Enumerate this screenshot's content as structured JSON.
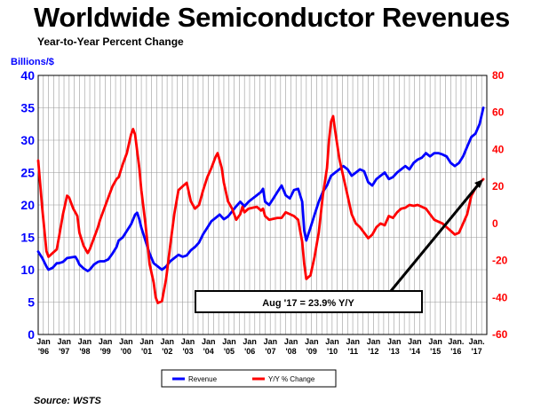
{
  "title": "Worldwide Semiconductor Revenues",
  "subtitle": "Year-to-Year Percent Change",
  "source": "Source: WSTS",
  "chart_data": {
    "type": "line",
    "title": "Worldwide Semiconductor Revenues",
    "subtitle": "Year-to-Year Percent Change",
    "ylabel_left": "Billions/$",
    "ylim_left": [
      0,
      40
    ],
    "yticks_left": [
      "0",
      "5",
      "10",
      "15",
      "20",
      "25",
      "30",
      "35",
      "40"
    ],
    "ylim_right": [
      -60,
      80
    ],
    "yticks_right": [
      "-60",
      "-40",
      "-20",
      "0",
      "20",
      "40",
      "60",
      "80"
    ],
    "x_tick_labels": [
      {
        "top": "Jan",
        "bottom": "'96"
      },
      {
        "top": "Jan",
        "bottom": "'97"
      },
      {
        "top": "Jan",
        "bottom": "'98"
      },
      {
        "top": "Jan",
        "bottom": "'99"
      },
      {
        "top": "Jan",
        "bottom": "'00"
      },
      {
        "top": "Jan",
        "bottom": "'01"
      },
      {
        "top": "Jan",
        "bottom": "'02"
      },
      {
        "top": "Jan",
        "bottom": "'03"
      },
      {
        "top": "Jan",
        "bottom": "'04"
      },
      {
        "top": "Jan",
        "bottom": "'05"
      },
      {
        "top": "Jan",
        "bottom": "'06"
      },
      {
        "top": "Jan",
        "bottom": "'07"
      },
      {
        "top": "Jan",
        "bottom": "'08"
      },
      {
        "top": "Jan",
        "bottom": "'09"
      },
      {
        "top": "Jan",
        "bottom": "'10"
      },
      {
        "top": "Jan",
        "bottom": "'11"
      },
      {
        "top": "Jan",
        "bottom": "'12"
      },
      {
        "top": "Jan",
        "bottom": "'13"
      },
      {
        "top": "Jan",
        "bottom": "'14"
      },
      {
        "top": "Jan",
        "bottom": "'15"
      },
      {
        "top": "Jan.",
        "bottom": "'16"
      },
      {
        "top": "Jan.",
        "bottom": "'17"
      }
    ],
    "grid": true,
    "legend_position": "bottom-center",
    "annotation": {
      "text": "Aug '17 = 23.9% Y/Y",
      "x": 2017.58,
      "value": 23.9
    },
    "series": [
      {
        "name": "Revenue",
        "axis": "left",
        "color": "#0000ff",
        "points": [
          [
            1996.0,
            12.8
          ],
          [
            1996.2,
            11.8
          ],
          [
            1996.4,
            10.5
          ],
          [
            1996.5,
            10.0
          ],
          [
            1996.7,
            10.3
          ],
          [
            1996.9,
            11.0
          ],
          [
            1997.0,
            11.0
          ],
          [
            1997.2,
            11.2
          ],
          [
            1997.4,
            11.8
          ],
          [
            1997.6,
            11.9
          ],
          [
            1997.8,
            12.0
          ],
          [
            1997.9,
            11.5
          ],
          [
            1998.0,
            10.8
          ],
          [
            1998.2,
            10.2
          ],
          [
            1998.4,
            9.8
          ],
          [
            1998.5,
            10.0
          ],
          [
            1998.7,
            10.8
          ],
          [
            1998.9,
            11.2
          ],
          [
            1999.0,
            11.3
          ],
          [
            1999.2,
            11.3
          ],
          [
            1999.4,
            11.6
          ],
          [
            1999.6,
            12.5
          ],
          [
            1999.8,
            13.5
          ],
          [
            1999.9,
            14.5
          ],
          [
            2000.1,
            15.0
          ],
          [
            2000.3,
            16.0
          ],
          [
            2000.5,
            17.0
          ],
          [
            2000.7,
            18.5
          ],
          [
            2000.8,
            18.8
          ],
          [
            2000.9,
            17.8
          ],
          [
            2001.0,
            16.5
          ],
          [
            2001.2,
            14.5
          ],
          [
            2001.4,
            12.5
          ],
          [
            2001.6,
            11.0
          ],
          [
            2001.8,
            10.5
          ],
          [
            2002.0,
            10.0
          ],
          [
            2002.2,
            10.5
          ],
          [
            2002.4,
            11.3
          ],
          [
            2002.6,
            11.8
          ],
          [
            2002.8,
            12.3
          ],
          [
            2003.0,
            12.0
          ],
          [
            2003.2,
            12.2
          ],
          [
            2003.4,
            13.0
          ],
          [
            2003.6,
            13.5
          ],
          [
            2003.8,
            14.2
          ],
          [
            2004.0,
            15.5
          ],
          [
            2004.2,
            16.5
          ],
          [
            2004.4,
            17.5
          ],
          [
            2004.6,
            18.0
          ],
          [
            2004.8,
            18.5
          ],
          [
            2005.0,
            17.8
          ],
          [
            2005.2,
            18.2
          ],
          [
            2005.4,
            19.0
          ],
          [
            2005.6,
            19.8
          ],
          [
            2005.8,
            20.5
          ],
          [
            2006.0,
            19.8
          ],
          [
            2006.2,
            20.5
          ],
          [
            2006.4,
            21.0
          ],
          [
            2006.6,
            21.5
          ],
          [
            2006.8,
            22.0
          ],
          [
            2006.9,
            22.5
          ],
          [
            2007.0,
            20.5
          ],
          [
            2007.2,
            20.0
          ],
          [
            2007.4,
            21.0
          ],
          [
            2007.6,
            22.0
          ],
          [
            2007.8,
            23.0
          ],
          [
            2008.0,
            21.5
          ],
          [
            2008.2,
            21.0
          ],
          [
            2008.4,
            22.3
          ],
          [
            2008.6,
            22.5
          ],
          [
            2008.8,
            20.5
          ],
          [
            2008.9,
            16.0
          ],
          [
            2009.0,
            14.5
          ],
          [
            2009.2,
            16.5
          ],
          [
            2009.4,
            18.5
          ],
          [
            2009.6,
            20.5
          ],
          [
            2009.8,
            22.0
          ],
          [
            2010.0,
            23.0
          ],
          [
            2010.2,
            24.5
          ],
          [
            2010.4,
            25.0
          ],
          [
            2010.6,
            25.5
          ],
          [
            2010.8,
            26.0
          ],
          [
            2011.0,
            25.5
          ],
          [
            2011.2,
            24.5
          ],
          [
            2011.4,
            25.0
          ],
          [
            2011.6,
            25.5
          ],
          [
            2011.8,
            25.2
          ],
          [
            2012.0,
            23.5
          ],
          [
            2012.2,
            23.0
          ],
          [
            2012.4,
            24.0
          ],
          [
            2012.6,
            24.5
          ],
          [
            2012.8,
            25.0
          ],
          [
            2013.0,
            24.0
          ],
          [
            2013.2,
            24.3
          ],
          [
            2013.4,
            25.0
          ],
          [
            2013.6,
            25.5
          ],
          [
            2013.8,
            26.0
          ],
          [
            2014.0,
            25.5
          ],
          [
            2014.2,
            26.5
          ],
          [
            2014.4,
            27.0
          ],
          [
            2014.6,
            27.3
          ],
          [
            2014.8,
            28.0
          ],
          [
            2015.0,
            27.5
          ],
          [
            2015.2,
            28.0
          ],
          [
            2015.4,
            28.0
          ],
          [
            2015.6,
            27.8
          ],
          [
            2015.8,
            27.5
          ],
          [
            2016.0,
            26.5
          ],
          [
            2016.2,
            26.0
          ],
          [
            2016.4,
            26.5
          ],
          [
            2016.6,
            27.5
          ],
          [
            2016.8,
            29.0
          ],
          [
            2017.0,
            30.5
          ],
          [
            2017.2,
            31.0
          ],
          [
            2017.4,
            32.5
          ],
          [
            2017.58,
            35.0
          ]
        ]
      },
      {
        "name": "Y/Y % Change",
        "axis": "right",
        "color": "#ff0000",
        "points": [
          [
            1996.0,
            34.0
          ],
          [
            1996.2,
            8.0
          ],
          [
            1996.4,
            -15.0
          ],
          [
            1996.5,
            -18.0
          ],
          [
            1996.7,
            -16.0
          ],
          [
            1996.9,
            -14.0
          ],
          [
            1997.0,
            -8.0
          ],
          [
            1997.2,
            5.0
          ],
          [
            1997.4,
            15.0
          ],
          [
            1997.5,
            14.0
          ],
          [
            1997.7,
            8.0
          ],
          [
            1997.9,
            4.0
          ],
          [
            1998.0,
            -5.0
          ],
          [
            1998.2,
            -12.0
          ],
          [
            1998.4,
            -16.0
          ],
          [
            1998.5,
            -14.0
          ],
          [
            1998.7,
            -8.0
          ],
          [
            1998.9,
            -2.0
          ],
          [
            1999.0,
            2.0
          ],
          [
            1999.2,
            8.0
          ],
          [
            1999.4,
            14.0
          ],
          [
            1999.6,
            20.0
          ],
          [
            1999.8,
            24.0
          ],
          [
            1999.9,
            25.0
          ],
          [
            2000.1,
            32.0
          ],
          [
            2000.3,
            38.0
          ],
          [
            2000.5,
            48.0
          ],
          [
            2000.6,
            51.0
          ],
          [
            2000.7,
            48.0
          ],
          [
            2000.9,
            30.0
          ],
          [
            2001.0,
            18.0
          ],
          [
            2001.2,
            0.0
          ],
          [
            2001.4,
            -22.0
          ],
          [
            2001.6,
            -32.0
          ],
          [
            2001.7,
            -40.0
          ],
          [
            2001.8,
            -43.0
          ],
          [
            2002.0,
            -42.0
          ],
          [
            2002.2,
            -30.0
          ],
          [
            2002.4,
            -12.0
          ],
          [
            2002.6,
            5.0
          ],
          [
            2002.8,
            18.0
          ],
          [
            2003.0,
            20.0
          ],
          [
            2003.2,
            22.0
          ],
          [
            2003.4,
            12.0
          ],
          [
            2003.6,
            8.0
          ],
          [
            2003.8,
            10.0
          ],
          [
            2004.0,
            18.0
          ],
          [
            2004.2,
            25.0
          ],
          [
            2004.4,
            30.0
          ],
          [
            2004.6,
            36.0
          ],
          [
            2004.7,
            38.0
          ],
          [
            2004.9,
            30.0
          ],
          [
            2005.0,
            22.0
          ],
          [
            2005.2,
            12.0
          ],
          [
            2005.4,
            8.0
          ],
          [
            2005.6,
            2.0
          ],
          [
            2005.8,
            5.0
          ],
          [
            2005.9,
            9.0
          ],
          [
            2006.0,
            6.0
          ],
          [
            2006.2,
            8.0
          ],
          [
            2006.4,
            8.5
          ],
          [
            2006.6,
            9.0
          ],
          [
            2006.8,
            7.0
          ],
          [
            2006.9,
            8.0
          ],
          [
            2007.0,
            4.0
          ],
          [
            2007.2,
            2.0
          ],
          [
            2007.4,
            2.5
          ],
          [
            2007.6,
            3.0
          ],
          [
            2007.8,
            3.0
          ],
          [
            2008.0,
            6.0
          ],
          [
            2008.2,
            5.0
          ],
          [
            2008.4,
            4.0
          ],
          [
            2008.6,
            2.0
          ],
          [
            2008.8,
            -10.0
          ],
          [
            2008.9,
            -22.0
          ],
          [
            2009.0,
            -30.0
          ],
          [
            2009.2,
            -28.0
          ],
          [
            2009.4,
            -18.0
          ],
          [
            2009.6,
            -5.0
          ],
          [
            2009.8,
            15.0
          ],
          [
            2010.0,
            30.0
          ],
          [
            2010.1,
            45.0
          ],
          [
            2010.2,
            55.0
          ],
          [
            2010.3,
            58.0
          ],
          [
            2010.4,
            50.0
          ],
          [
            2010.6,
            35.0
          ],
          [
            2010.8,
            25.0
          ],
          [
            2011.0,
            15.0
          ],
          [
            2011.2,
            5.0
          ],
          [
            2011.4,
            0.0
          ],
          [
            2011.6,
            -2.0
          ],
          [
            2011.8,
            -5.0
          ],
          [
            2012.0,
            -8.0
          ],
          [
            2012.2,
            -6.0
          ],
          [
            2012.4,
            -2.0
          ],
          [
            2012.6,
            0.0
          ],
          [
            2012.8,
            -1.0
          ],
          [
            2013.0,
            4.0
          ],
          [
            2013.2,
            3.0
          ],
          [
            2013.4,
            6.0
          ],
          [
            2013.6,
            8.0
          ],
          [
            2013.8,
            8.5
          ],
          [
            2014.0,
            10.0
          ],
          [
            2014.2,
            9.5
          ],
          [
            2014.4,
            10.0
          ],
          [
            2014.6,
            9.0
          ],
          [
            2014.8,
            8.0
          ],
          [
            2015.0,
            5.0
          ],
          [
            2015.2,
            2.0
          ],
          [
            2015.4,
            1.0
          ],
          [
            2015.6,
            0.0
          ],
          [
            2015.8,
            -2.0
          ],
          [
            2016.0,
            -4.0
          ],
          [
            2016.2,
            -6.0
          ],
          [
            2016.4,
            -5.0
          ],
          [
            2016.6,
            0.0
          ],
          [
            2016.8,
            5.0
          ],
          [
            2017.0,
            15.0
          ],
          [
            2017.2,
            19.0
          ],
          [
            2017.4,
            22.0
          ],
          [
            2017.58,
            23.9
          ]
        ]
      }
    ]
  }
}
